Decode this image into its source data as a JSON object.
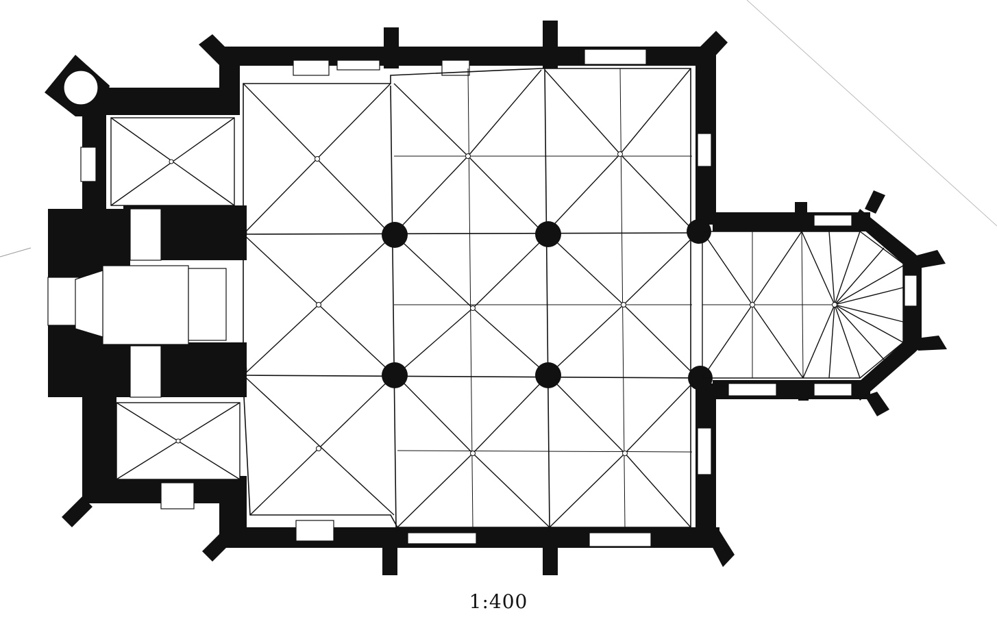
{
  "drawing": {
    "scale_label": "1:400"
  }
}
